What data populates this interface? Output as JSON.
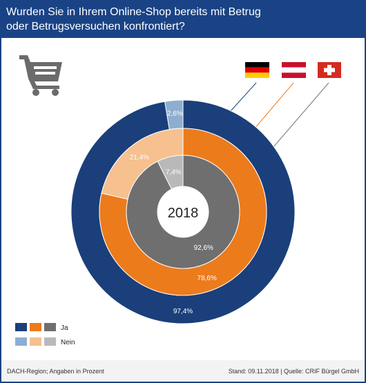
{
  "title": "Wurden Sie in Ihrem Online-Shop bereits mit Betrug oder Betrugsversuchen konfrontiert?",
  "title_line1": "Wurden Sie in Ihrem Online-Shop bereits mit Betrug",
  "title_line2": "oder Betrugsversuchen konfrontiert?",
  "footer": {
    "left": "DACH-Region; Angaben in Prozent",
    "right": "Stand: 09.11.2018 | Quelle: CRIF Bürgel GmbH"
  },
  "icons": [
    "shopping-cart-icon",
    "flag-germany-icon",
    "flag-austria-icon",
    "flag-switzerland-icon"
  ],
  "center_label": "2018",
  "chart_data": {
    "type": "pie",
    "title": "Wurden Sie in Ihrem Online-Shop bereits mit Betrug oder Betrugsversuchen konfrontiert?",
    "categories": [
      "Ja",
      "Nein"
    ],
    "series": [
      {
        "flag": "Deutschland",
        "ring": "outer",
        "values": [
          97.4,
          2.6
        ],
        "labels": [
          "97,4%",
          "2,6%"
        ],
        "colors": [
          "#1a3f7a",
          "#8eaed1"
        ]
      },
      {
        "flag": "Österreich",
        "ring": "middle",
        "values": [
          78.6,
          21.4
        ],
        "labels": [
          "78,6%",
          "21,4%"
        ],
        "colors": [
          "#ec7b1c",
          "#f6c08f"
        ]
      },
      {
        "flag": "Schweiz",
        "ring": "inner",
        "values": [
          92.6,
          7.4
        ],
        "labels": [
          "92,6%",
          "7,4%"
        ],
        "colors": [
          "#6f6f6f",
          "#b9b9b9"
        ]
      }
    ],
    "legend": {
      "placement": "bottom-left",
      "items": [
        {
          "label": "Ja",
          "colors": [
            "#1a3f7a",
            "#ec7b1c",
            "#6f6f6f"
          ]
        },
        {
          "label": "Nein",
          "colors": [
            "#8eaed1",
            "#f6c08f",
            "#b9b9b9"
          ]
        }
      ]
    },
    "flag_colors": {
      "germany": [
        "#000000",
        "#dd0000",
        "#ffce00"
      ],
      "austria": [
        "#c8102e",
        "#ffffff",
        "#c8102e"
      ],
      "switzerland": [
        "#d52b1e",
        "#ffffff"
      ]
    }
  }
}
